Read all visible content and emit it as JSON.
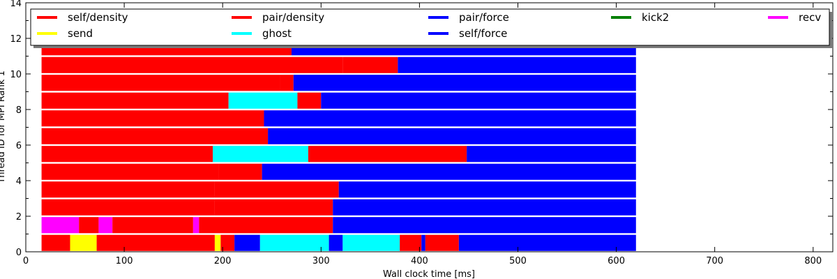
{
  "chart_data": {
    "type": "timeline",
    "xlabel": "Wall clock time [ms]",
    "ylabel": "Thread ID for MPI Rank 1",
    "xlim": [
      0,
      820
    ],
    "ylim": [
      0,
      14
    ],
    "xticks": [
      0,
      100,
      200,
      300,
      400,
      500,
      600,
      700,
      800
    ],
    "yticks": [
      0,
      2,
      4,
      6,
      8,
      10,
      12,
      14
    ],
    "grid": false,
    "legend_placement": "top",
    "legend": [
      {
        "name": "self/density",
        "color": "#ff0000"
      },
      {
        "name": "pair/density",
        "color": "#ff0000"
      },
      {
        "name": "pair/force",
        "color": "#0000ff"
      },
      {
        "name": "kick2",
        "color": "#008000"
      },
      {
        "name": "recv",
        "color": "#ff00ff"
      },
      {
        "name": "send",
        "color": "#ffff00"
      },
      {
        "name": "ghost",
        "color": "#00ffff"
      },
      {
        "name": "self/force",
        "color": "#0000ff"
      }
    ],
    "colors": {
      "self/density": "#ff0000",
      "pair/density": "#ff0000",
      "pair/force": "#0000ff",
      "self/force": "#0000ff",
      "kick2": "#008000",
      "recv": "#ff00ff",
      "send": "#ffff00",
      "ghost": "#00ffff"
    },
    "threads": [
      {
        "id": 0,
        "segments": [
          {
            "task": "self/density",
            "start": 16,
            "end": 45
          },
          {
            "task": "send",
            "start": 45,
            "end": 72
          },
          {
            "task": "pair/density",
            "start": 72,
            "end": 192
          },
          {
            "task": "send",
            "start": 192,
            "end": 198
          },
          {
            "task": "pair/density",
            "start": 198,
            "end": 212
          },
          {
            "task": "pair/force",
            "start": 212,
            "end": 238
          },
          {
            "task": "ghost",
            "start": 238,
            "end": 308
          },
          {
            "task": "pair/force",
            "start": 308,
            "end": 322
          },
          {
            "task": "ghost",
            "start": 322,
            "end": 380
          },
          {
            "task": "pair/density",
            "start": 380,
            "end": 402
          },
          {
            "task": "pair/force",
            "start": 402,
            "end": 406
          },
          {
            "task": "pair/density",
            "start": 406,
            "end": 440
          },
          {
            "task": "pair/force",
            "start": 440,
            "end": 620
          }
        ]
      },
      {
        "id": 1,
        "segments": [
          {
            "task": "recv",
            "start": 16,
            "end": 54
          },
          {
            "task": "self/density",
            "start": 54,
            "end": 74
          },
          {
            "task": "recv",
            "start": 74,
            "end": 88
          },
          {
            "task": "pair/density",
            "start": 88,
            "end": 170
          },
          {
            "task": "recv",
            "start": 170,
            "end": 176
          },
          {
            "task": "pair/density",
            "start": 176,
            "end": 312
          },
          {
            "task": "pair/force",
            "start": 312,
            "end": 620
          }
        ]
      },
      {
        "id": 2,
        "segments": [
          {
            "task": "self/density",
            "start": 16,
            "end": 192
          },
          {
            "task": "pair/density",
            "start": 192,
            "end": 312
          },
          {
            "task": "pair/force",
            "start": 312,
            "end": 620
          }
        ]
      },
      {
        "id": 3,
        "segments": [
          {
            "task": "self/density",
            "start": 16,
            "end": 192
          },
          {
            "task": "pair/density",
            "start": 192,
            "end": 318
          },
          {
            "task": "pair/force",
            "start": 318,
            "end": 620
          }
        ]
      },
      {
        "id": 4,
        "segments": [
          {
            "task": "self/density",
            "start": 16,
            "end": 196
          },
          {
            "task": "pair/density",
            "start": 196,
            "end": 240
          },
          {
            "task": "pair/force",
            "start": 240,
            "end": 620
          }
        ]
      },
      {
        "id": 5,
        "segments": [
          {
            "task": "self/density",
            "start": 16,
            "end": 190
          },
          {
            "task": "ghost",
            "start": 190,
            "end": 287
          },
          {
            "task": "pair/density",
            "start": 287,
            "end": 448
          },
          {
            "task": "pair/force",
            "start": 448,
            "end": 620
          }
        ]
      },
      {
        "id": 6,
        "segments": [
          {
            "task": "self/density",
            "start": 16,
            "end": 246
          },
          {
            "task": "pair/force",
            "start": 246,
            "end": 620
          }
        ]
      },
      {
        "id": 7,
        "segments": [
          {
            "task": "self/density",
            "start": 16,
            "end": 242
          },
          {
            "task": "pair/force",
            "start": 242,
            "end": 620
          }
        ]
      },
      {
        "id": 8,
        "segments": [
          {
            "task": "self/density",
            "start": 16,
            "end": 206
          },
          {
            "task": "ghost",
            "start": 206,
            "end": 276
          },
          {
            "task": "pair/density",
            "start": 276,
            "end": 300
          },
          {
            "task": "pair/force",
            "start": 300,
            "end": 620
          }
        ]
      },
      {
        "id": 9,
        "segments": [
          {
            "task": "self/density",
            "start": 16,
            "end": 258
          },
          {
            "task": "pair/density",
            "start": 258,
            "end": 272
          },
          {
            "task": "pair/force",
            "start": 272,
            "end": 620
          }
        ]
      },
      {
        "id": 10,
        "segments": [
          {
            "task": "self/density",
            "start": 16,
            "end": 322
          },
          {
            "task": "pair/density",
            "start": 322,
            "end": 378
          },
          {
            "task": "pair/force",
            "start": 378,
            "end": 620
          }
        ]
      },
      {
        "id": 11,
        "segments": [
          {
            "task": "self/density",
            "start": 16,
            "end": 270
          },
          {
            "task": "pair/force",
            "start": 270,
            "end": 620
          }
        ]
      }
    ]
  }
}
